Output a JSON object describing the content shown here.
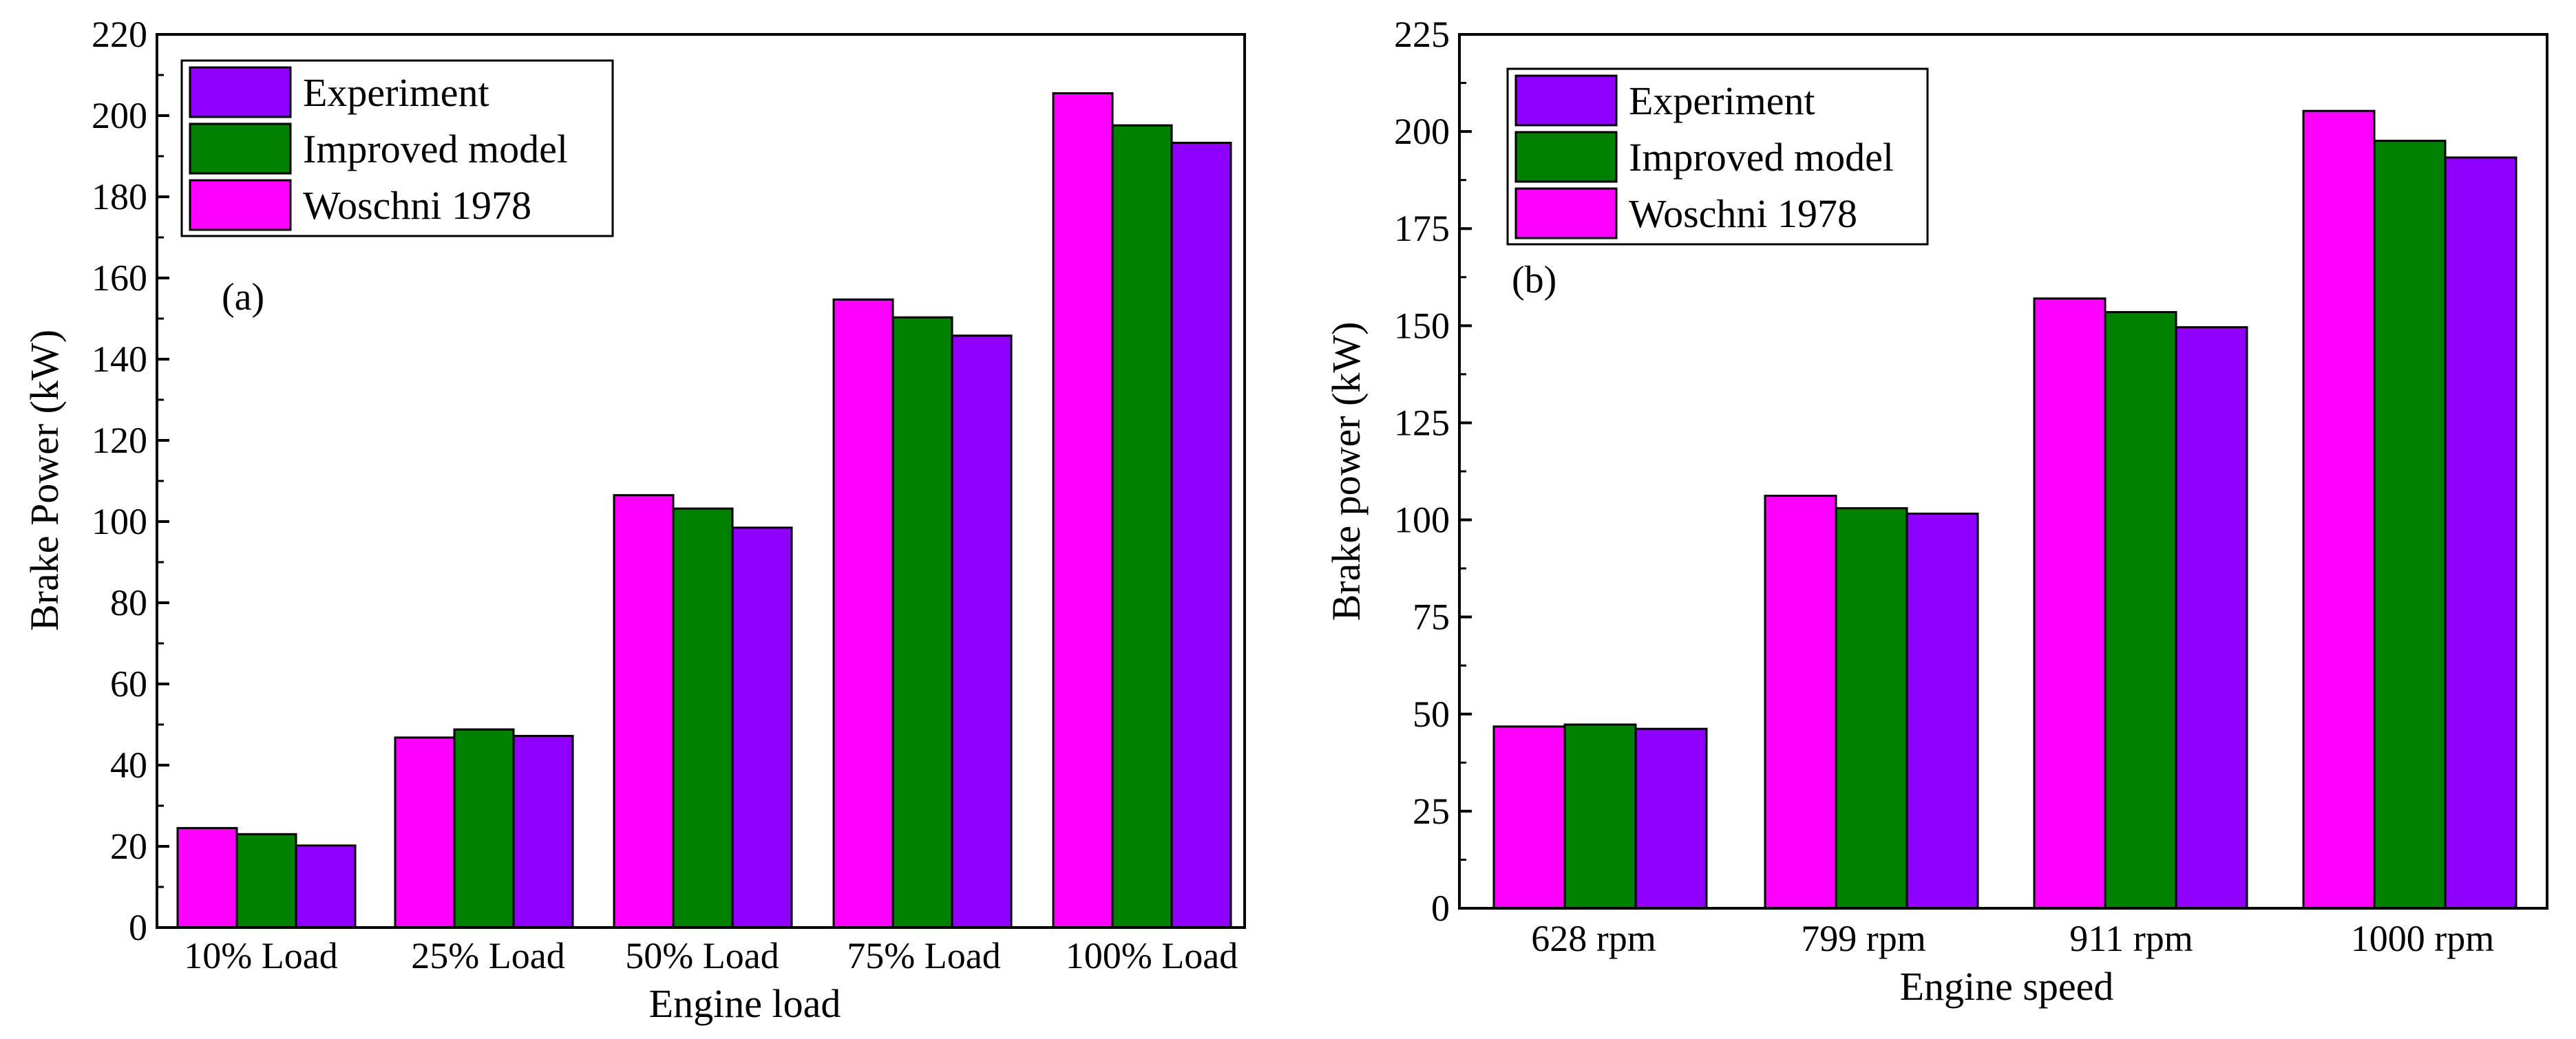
{
  "chart_data": [
    {
      "type": "bar",
      "panel_tag": "(a)",
      "xlabel": "Engine load",
      "ylabel": "Brake Power (kW)",
      "ylim": [
        0,
        220
      ],
      "ytick_step": 20,
      "ytick_labels": [
        "0",
        "20",
        "40",
        "60",
        "80",
        "100",
        "120",
        "140",
        "160",
        "180",
        "200",
        "220"
      ],
      "categories": [
        "10% Load",
        "25% Load",
        "50% Load",
        "75% Load",
        "100% Load"
      ],
      "series": [
        {
          "name": "Woschni 1978",
          "color": "#ff00ff",
          "values": [
            24.5,
            46.8,
            106.5,
            154.7,
            205.5
          ]
        },
        {
          "name": "Improved model",
          "color": "#007f00",
          "values": [
            23.0,
            48.8,
            103.2,
            150.3,
            197.6
          ]
        },
        {
          "name": "Experiment",
          "color": "#8f00ff",
          "values": [
            20.2,
            47.2,
            98.5,
            145.8,
            193.3
          ]
        }
      ],
      "legend_order": [
        "Experiment",
        "Improved model",
        "Woschni 1978"
      ],
      "legend_position": "top-left"
    },
    {
      "type": "bar",
      "panel_tag": "(b)",
      "xlabel": "Engine speed",
      "ylabel": "Brake power (kW)",
      "ylim": [
        0,
        225
      ],
      "ytick_step": 25,
      "ytick_labels": [
        "0",
        "25",
        "50",
        "75",
        "100",
        "125",
        "150",
        "175",
        "200",
        "225"
      ],
      "categories": [
        "628 rpm",
        "799 rpm",
        "911 rpm",
        "1000 rpm"
      ],
      "series": [
        {
          "name": "Woschni 1978",
          "color": "#ff00ff",
          "values": [
            46.8,
            106.2,
            157.0,
            205.3
          ]
        },
        {
          "name": "Improved model",
          "color": "#007f00",
          "values": [
            47.3,
            103.0,
            153.5,
            197.6
          ]
        },
        {
          "name": "Experiment",
          "color": "#8f00ff",
          "values": [
            46.2,
            101.6,
            149.6,
            193.3
          ]
        }
      ],
      "legend_order": [
        "Experiment",
        "Improved model",
        "Woschni 1978"
      ],
      "legend_position": "top-left"
    }
  ]
}
